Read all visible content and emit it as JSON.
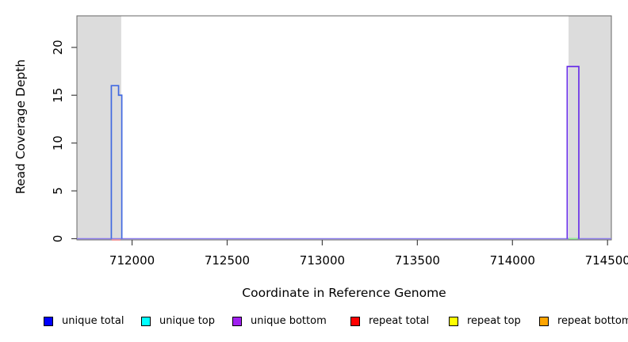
{
  "axes": {
    "x_label": "Coordinate in Reference Genome",
    "y_label": "Read Coverage Depth"
  },
  "chart_data": {
    "type": "line",
    "title": "",
    "xlabel": "Coordinate in Reference Genome",
    "ylabel": "Read Coverage Depth",
    "xlim": [
      711710,
      714520
    ],
    "ylim": [
      0,
      23.3
    ],
    "x_ticks": [
      712000,
      712500,
      713000,
      713500,
      714000,
      714500
    ],
    "y_ticks": [
      0,
      5,
      10,
      15,
      20
    ],
    "grid": false,
    "legend_position": "bottom",
    "shaded_regions": [
      {
        "name": "left-flank-region",
        "x1": 711710,
        "x2": 711943,
        "color": "#DCDCDC"
      },
      {
        "name": "right-flank-region",
        "x1": 714295,
        "x2": 714520,
        "color": "#DCDCDC"
      }
    ],
    "baseline": {
      "y": 0,
      "color": "#8C7DEB"
    },
    "series": [
      {
        "name": "unique total",
        "swatch_color": "#0000FF",
        "line_color": "#4169E1",
        "segments": [
          {
            "x1": 711891,
            "x2": 711929,
            "y": 16
          },
          {
            "x1": 711929,
            "x2": 711946,
            "y": 15
          }
        ]
      },
      {
        "name": "unique top",
        "swatch_color": "#00FFFF",
        "line_color": "#00FFFF",
        "segments": []
      },
      {
        "name": "unique bottom",
        "swatch_color": "#A020F0",
        "line_color": "#6A30E7",
        "segments": [
          {
            "x1": 714288,
            "x2": 714349,
            "y": 18
          }
        ]
      },
      {
        "name": "repeat total",
        "swatch_color": "#FF0000",
        "line_color": "#F08080",
        "segments": [
          {
            "x1": 711893,
            "x2": 711939,
            "y": 0
          }
        ]
      },
      {
        "name": "repeat top",
        "swatch_color": "#FFFF00",
        "line_color": "#FFFF00",
        "segments": []
      },
      {
        "name": "repeat bottom",
        "swatch_color": "#FFA500",
        "line_color": "#FFA500",
        "segments": []
      }
    ],
    "extra_marks": [
      {
        "name": "green-baseline-segment",
        "x1": 714295,
        "x2": 714343,
        "y": 0,
        "color": "#90EE90"
      }
    ],
    "legend": [
      "unique total",
      "unique top",
      "unique bottom",
      "repeat total",
      "repeat top",
      "repeat bottom"
    ]
  }
}
